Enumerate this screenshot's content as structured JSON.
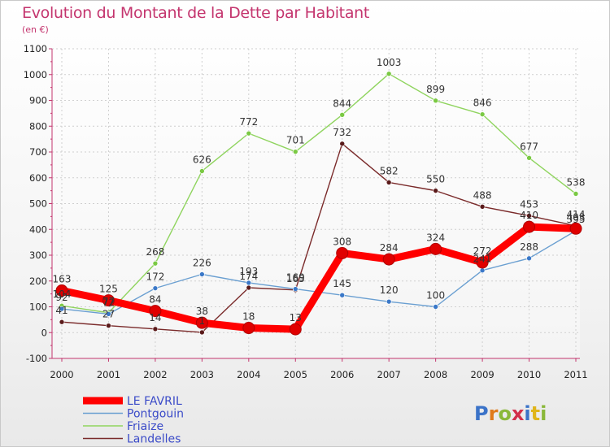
{
  "chart_data": {
    "type": "line",
    "title": "Evolution du Montant de la Dette par Habitant",
    "subtitle": "(en €)",
    "x": [
      "2000",
      "2001",
      "2002",
      "2003",
      "2004",
      "2005",
      "2006",
      "2007",
      "2008",
      "2009",
      "2010",
      "2011"
    ],
    "ylim": [
      -100,
      1100
    ],
    "yticks": [
      -100,
      0,
      100,
      200,
      300,
      400,
      500,
      600,
      700,
      800,
      900,
      1000,
      1100
    ],
    "grid": true,
    "legend_position": "bottom-left",
    "series": [
      {
        "name": "LE FAVRIL",
        "color": "#ff0000",
        "values": [
          163,
          125,
          84,
          38,
          18,
          13,
          308,
          284,
          324,
          272,
          410,
          403
        ]
      },
      {
        "name": "Pontgouin",
        "color": "#6a9fd1",
        "values": [
          92,
          72,
          172,
          226,
          193,
          169,
          145,
          120,
          100,
          241,
          288,
          395
        ]
      },
      {
        "name": "Friaize",
        "color": "#8fd45e",
        "values": [
          104,
          77,
          268,
          626,
          772,
          701,
          844,
          1003,
          899,
          846,
          677,
          538
        ]
      },
      {
        "name": "Landelles",
        "color": "#7a2a2a",
        "values": [
          41,
          27,
          14,
          1,
          174,
          165,
          732,
          582,
          550,
          488,
          453,
          414
        ]
      }
    ]
  },
  "logo_text": "Proxiti"
}
